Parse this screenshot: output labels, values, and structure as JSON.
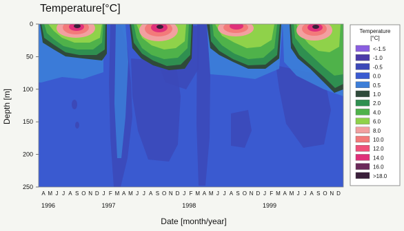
{
  "chart_data": {
    "type": "heatmap",
    "title": "Temperature[°C]",
    "xlabel": "Date [month/year]",
    "ylabel": "Depth [m]",
    "ylim": [
      0,
      250
    ],
    "y_ticks": [
      "0",
      "50",
      "100",
      "150",
      "200",
      "250"
    ],
    "y_tick_values": [
      0,
      50,
      100,
      150,
      200,
      250
    ],
    "x_month_labels": [
      "A",
      "M",
      "J",
      "J",
      "A",
      "S",
      "O",
      "N",
      "D",
      "J",
      "F",
      "M",
      "A",
      "M",
      "J",
      "J",
      "A",
      "S",
      "O",
      "N",
      "D",
      "J",
      "F",
      "M",
      "A",
      "M",
      "J",
      "J",
      "A",
      "S",
      "O",
      "N",
      "D",
      "J",
      "F",
      "M",
      "A",
      "M",
      "J",
      "J",
      "A",
      "S",
      "O",
      "N",
      "D"
    ],
    "x_year_labels": [
      {
        "label": "1996",
        "month_index": 0
      },
      {
        "label": "1997",
        "month_index": 9
      },
      {
        "label": "1998",
        "month_index": 21
      },
      {
        "label": "1999",
        "month_index": 33
      }
    ],
    "legend": {
      "title": "Temperature\n[°C]",
      "position": "right",
      "entries": [
        {
          "label": "<-1.5",
          "color": "#8a5ee0"
        },
        {
          "label": "-1.0",
          "color": "#4b3aa8"
        },
        {
          "label": "-0.5",
          "color": "#3c49b8"
        },
        {
          "label": "0.0",
          "color": "#3a5ad0"
        },
        {
          "label": "0.5",
          "color": "#3c7ed8"
        },
        {
          "label": "1.0",
          "color": "#2f4a3a"
        },
        {
          "label": "2.0",
          "color": "#2f8f50"
        },
        {
          "label": "4.0",
          "color": "#4fb24a"
        },
        {
          "label": "6.0",
          "color": "#8fd24a"
        },
        {
          "label": "8.0",
          "color": "#f2a0a0"
        },
        {
          "label": "10.0",
          "color": "#f37a7a"
        },
        {
          "label": "12.0",
          "color": "#f0507a"
        },
        {
          "label": "14.0",
          "color": "#e0307a"
        },
        {
          "label": "16.0",
          "color": "#6a2a5a"
        },
        {
          "label": ">18.0",
          "color": "#3a1f3a"
        }
      ]
    },
    "series": [
      {
        "name": "Summer warm layer 1996",
        "peak_month_index": 4,
        "max_depth_m": 80,
        "core_temp_c": 16
      },
      {
        "name": "Summer warm layer 1997",
        "peak_month_index": 16,
        "max_depth_m": 65,
        "core_temp_c": 16
      },
      {
        "name": "Summer warm layer 1998",
        "peak_month_index": 28,
        "max_depth_m": 70,
        "core_temp_c": 16
      },
      {
        "name": "Summer warm layer 1999",
        "peak_month_index": 40,
        "max_depth_m": 75,
        "core_temp_c": 16
      }
    ],
    "background_colors": {
      "deep": "#3a5ad0",
      "deeper": "#3c49b8"
    },
    "grid": false
  }
}
